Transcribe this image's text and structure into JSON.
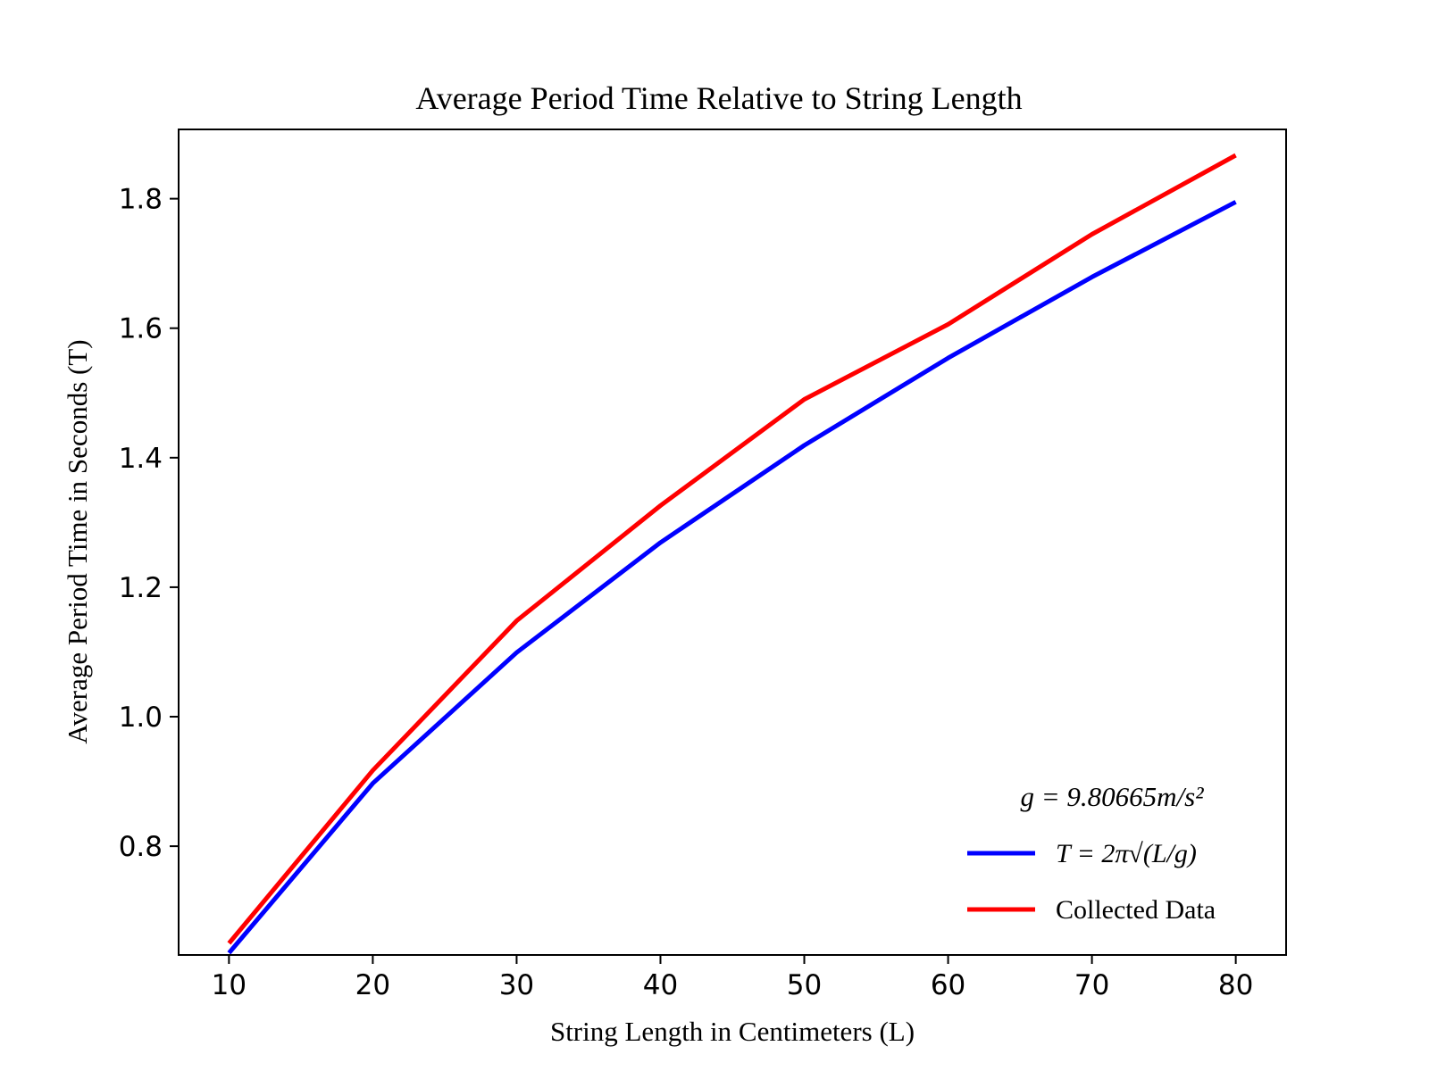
{
  "chart_data": {
    "type": "line",
    "title": "Average Period Time Relative to String Length",
    "xlabel": "String Length in Centimeters (L)",
    "ylabel": "Average Period Time in Seconds (T)",
    "x": [
      10,
      20,
      30,
      40,
      50,
      60,
      70,
      80
    ],
    "xlim": [
      6.5,
      83.5
    ],
    "ylim": [
      0.632,
      1.907
    ],
    "xticks": [
      10,
      20,
      30,
      40,
      50,
      60,
      70,
      80
    ],
    "yticks": [
      0.8,
      1.0,
      1.2,
      1.4,
      1.6,
      1.8
    ],
    "grid": false,
    "legend": {
      "placement": "lower-right",
      "header": "g = 9.80665m/s²"
    },
    "series": [
      {
        "name": "T = 2π√(L/g)",
        "color": "#0000ff",
        "values": [
          0.635,
          0.897,
          1.099,
          1.269,
          1.419,
          1.554,
          1.679,
          1.795
        ]
      },
      {
        "name": "Collected Data",
        "color": "#ff0000",
        "values": [
          0.65,
          0.917,
          1.148,
          1.326,
          1.49,
          1.606,
          1.745,
          1.867
        ]
      }
    ]
  }
}
